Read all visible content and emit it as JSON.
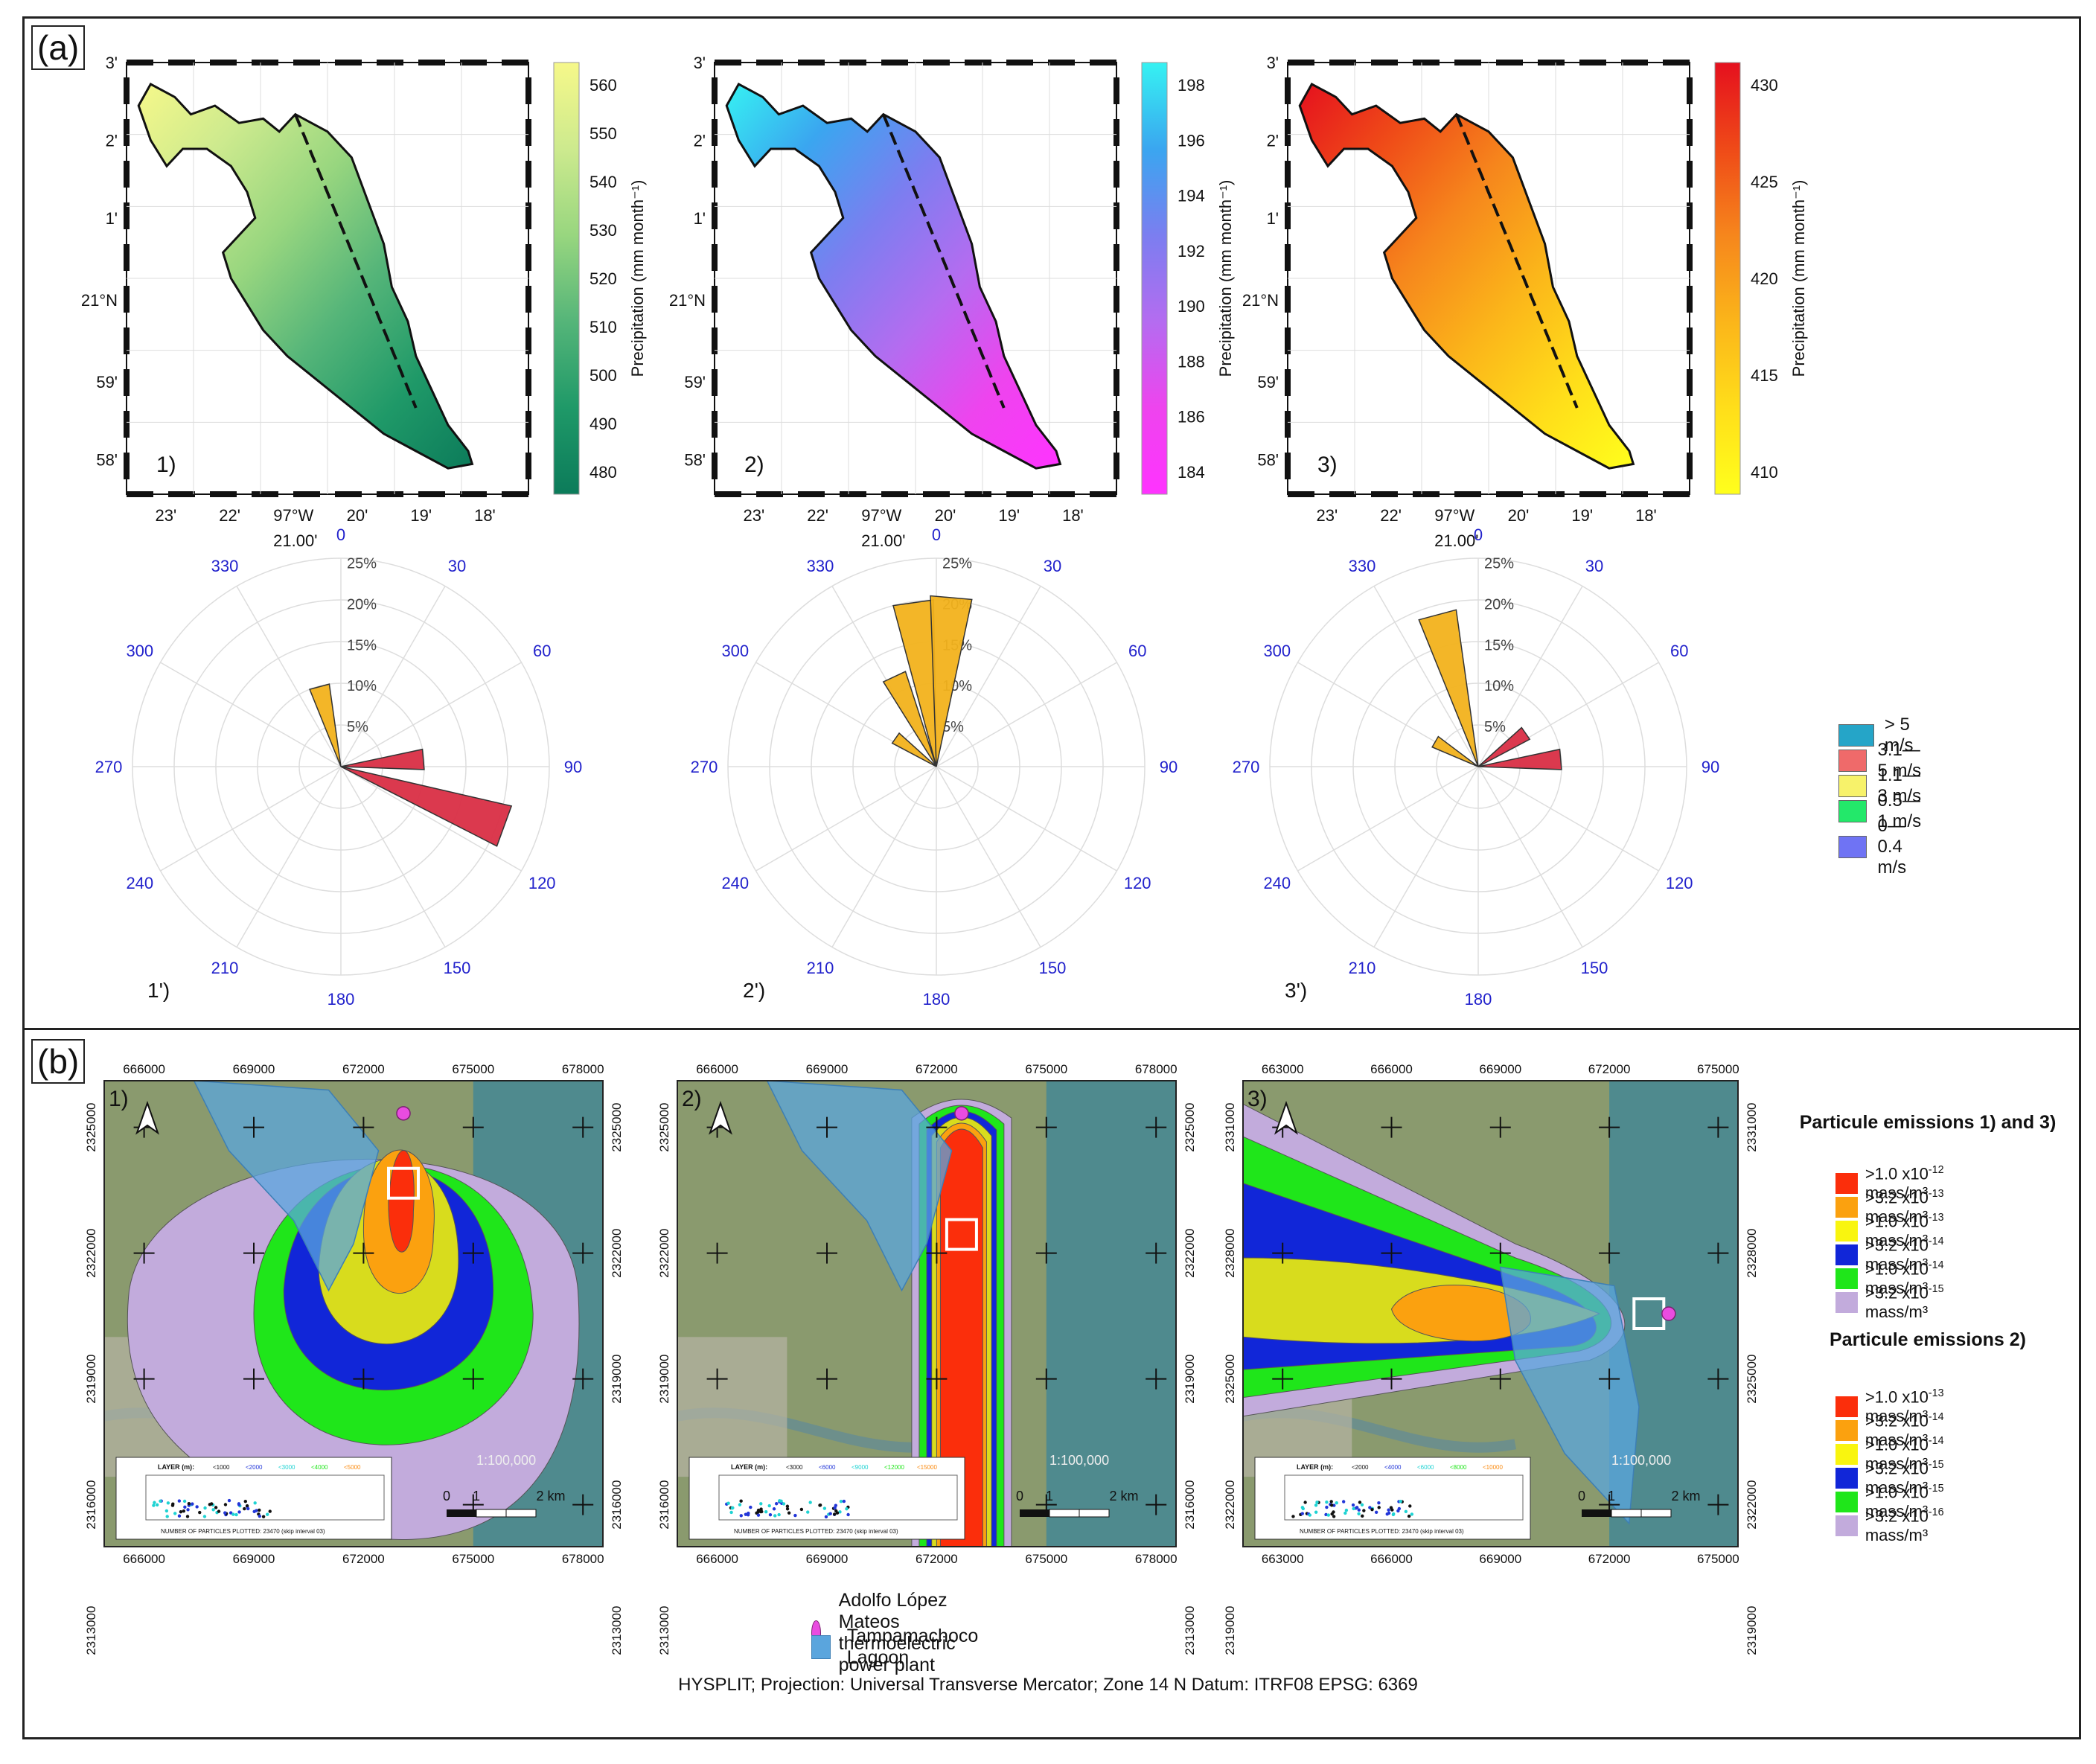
{
  "panel_a": {
    "label": "(a)",
    "maps": [
      {
        "id": "1)",
        "colorbar": {
          "ticks": [
            "560",
            "550",
            "540",
            "530",
            "520",
            "510",
            "500",
            "490",
            "480"
          ],
          "label": "Precipitation (mm month⁻¹)",
          "colors": [
            "#f6f88a",
            "#cdea8e",
            "#98d67f",
            "#55b579",
            "#1f9968",
            "#0c7b5a"
          ]
        }
      },
      {
        "id": "2)",
        "colorbar": {
          "ticks": [
            "198",
            "196",
            "194",
            "192",
            "190",
            "188",
            "186",
            "184"
          ],
          "label": "Precipitation (mm month⁻¹)",
          "colors": [
            "#36f2f2",
            "#3aa6f0",
            "#7b7ef0",
            "#b46cf0",
            "#ee44ee",
            "#ff33ff"
          ]
        }
      },
      {
        "id": "3)",
        "colorbar": {
          "ticks": [
            "430",
            "425",
            "420",
            "415",
            "410"
          ],
          "label": "Precipitation (mm month⁻¹)",
          "colors": [
            "#e5101e",
            "#ef4a18",
            "#f6861c",
            "#fbb51a",
            "#ffde1a",
            "#ffff1c"
          ]
        }
      }
    ],
    "lat_labels": [
      "3'",
      "2'",
      "1'",
      "21°N",
      "59'",
      "58'"
    ],
    "lon_labels": [
      "23'",
      "22'",
      "97°W",
      "20'",
      "19'",
      "18'"
    ],
    "lon_sublabel": "21.00'",
    "roses": [
      {
        "id": "1')",
        "petals": [
          {
            "dir": 345,
            "pct": 10,
            "class": "1.1—3 m/s"
          },
          {
            "dir": 85,
            "pct": 10,
            "class": "3.1—5 m/s"
          },
          {
            "dir": 110,
            "pct": 21,
            "class": "3.1—5 m/s"
          }
        ]
      },
      {
        "id": "2')",
        "petals": [
          {
            "dir": 352,
            "pct": 20,
            "class": "1.1—3 m/s"
          },
          {
            "dir": 5,
            "pct": 20.5,
            "class": "1.1—3 m/s"
          },
          {
            "dir": 335,
            "pct": 12,
            "class": "1.1—3 m/s"
          },
          {
            "dir": 305,
            "pct": 6,
            "class": "1.1—3 m/s"
          }
        ]
      },
      {
        "id": "3')",
        "petals": [
          {
            "dir": 345,
            "pct": 19,
            "class": "1.1—3 m/s"
          },
          {
            "dir": 300,
            "pct": 6,
            "class": "1.1—3 m/s"
          },
          {
            "dir": 55,
            "pct": 7,
            "class": "3.1—5 m/s"
          },
          {
            "dir": 85,
            "pct": 10,
            "class": "3.1—5 m/s"
          }
        ]
      }
    ],
    "rose_angles": [
      "0",
      "30",
      "60",
      "90",
      "120",
      "150",
      "180",
      "210",
      "240",
      "270",
      "300",
      "330"
    ],
    "rose_rings": [
      "5%",
      "10%",
      "15%",
      "20%",
      "25%"
    ],
    "wind_legend": [
      {
        "label": "> 5 m/s",
        "color": "#25a5c8"
      },
      {
        "label": "3.1—5 m/s",
        "color": "#ef6a6a"
      },
      {
        "label": "1.1—3 m/s",
        "color": "#f7f26a"
      },
      {
        "label": "0.5—1 m/s",
        "color": "#23e86a"
      },
      {
        "label": "0—0.4 m/s",
        "color": "#6f73f4"
      }
    ],
    "petal_colors": {
      "1.1—3 m/s": "#f2b21c",
      "3.1—5 m/s": "#d92e44"
    }
  },
  "panel_b": {
    "label": "(b)",
    "maps": [
      {
        "id": "1)",
        "x_ticks": [
          "666000",
          "669000",
          "672000",
          "675000",
          "678000"
        ],
        "y_ticks": [
          "2325000",
          "2322000",
          "2319000",
          "2316000",
          "2313000"
        ],
        "inset": {
          "header": "LAYER (m):",
          "layers": [
            "<1000",
            "<2000",
            "<3000",
            "<4000",
            "<5000"
          ],
          "footer": "NUMBER OF PARTICLES PLOTTED: 23470 (skip interval   03)"
        }
      },
      {
        "id": "2)",
        "x_ticks": [
          "666000",
          "669000",
          "672000",
          "675000",
          "678000"
        ],
        "y_ticks": [
          "2325000",
          "2322000",
          "2319000",
          "2316000",
          "2313000"
        ],
        "inset": {
          "header": "LAYER (m):",
          "layers": [
            "<3000",
            "<6000",
            "<9000",
            "<12000",
            "<15000"
          ],
          "footer": "NUMBER OF PARTICLES PLOTTED: 23470 (skip interval   03)"
        }
      },
      {
        "id": "3)",
        "x_ticks": [
          "663000",
          "666000",
          "669000",
          "672000",
          "675000"
        ],
        "y_ticks": [
          "2331000",
          "2328000",
          "2325000",
          "2322000",
          "2319000"
        ],
        "inset": {
          "header": "LAYER (m):",
          "layers": [
            "<2000",
            "<4000",
            "<6000",
            "<8000",
            "<10000"
          ],
          "footer": "NUMBER OF PARTICLES PLOTTED: 23470 (skip interval   03)"
        }
      }
    ],
    "scale_text": "1:100,000",
    "scale_ticks": [
      "0",
      "1",
      "2 km"
    ],
    "legend_13_title": "Particule emissions 1) and 3)",
    "legend_13": [
      {
        "label": ">1.0 x10",
        "exp": "-12",
        "unit": " mass/m³",
        "color": "#fb2e0b"
      },
      {
        "label": ">3.2 x10",
        "exp": "-13",
        "unit": " mass/m³",
        "color": "#fba10f"
      },
      {
        "label": ">1.0 x10",
        "exp": "-13",
        "unit": " mass/m³",
        "color": "#f9f50f"
      },
      {
        "label": ">3.2 x10",
        "exp": "-14",
        "unit": " mass/m³",
        "color": "#1126d8"
      },
      {
        "label": ">1.0 x10",
        "exp": "-14",
        "unit": " mass/m³",
        "color": "#1fe61a"
      },
      {
        "label": ">3.2 x10",
        "exp": "-15",
        "unit": " mass/m³",
        "color": "#c2abdc"
      }
    ],
    "legend_2_title": "Particule emissions 2)",
    "legend_2": [
      {
        "label": ">1.0 x10",
        "exp": "-13",
        "unit": " mass/m³",
        "color": "#fb2e0b"
      },
      {
        "label": ">3.2 x10",
        "exp": "-14",
        "unit": " mass/m³",
        "color": "#fba10f"
      },
      {
        "label": ">1.0 x10",
        "exp": "-14",
        "unit": " mass/m³",
        "color": "#f9f50f"
      },
      {
        "label": ">3.2 x10",
        "exp": "-15",
        "unit": " mass/m³",
        "color": "#1126d8"
      },
      {
        "label": ">1.0 x10",
        "exp": "-15",
        "unit": " mass/m³",
        "color": "#1fe61a"
      },
      {
        "label": ">3.2 x10",
        "exp": "-16",
        "unit": " mass/m³",
        "color": "#c2abdc"
      }
    ],
    "legend_bottom": [
      {
        "label": "Adolfo López Mateos thermoelectric power plant",
        "color": "#e94ce0"
      },
      {
        "label": "Tampamachoco Lagoon",
        "color": "#5aa5dd"
      }
    ],
    "footer": "HYSPLIT; Projection: Universal Transverse Mercator; Zone 14 N Datum: ITRF08 EPSG: 6369"
  }
}
